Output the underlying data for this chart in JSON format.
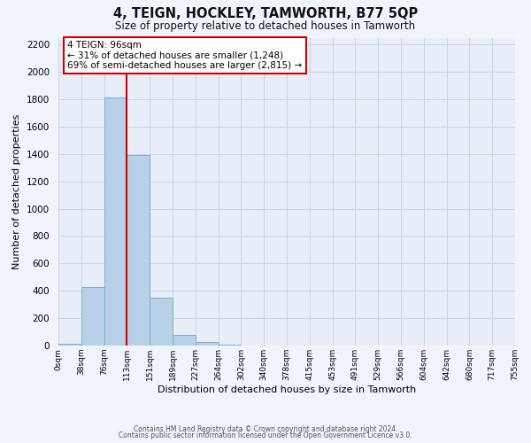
{
  "title": "4, TEIGN, HOCKLEY, TAMWORTH, B77 5QP",
  "subtitle": "Size of property relative to detached houses in Tamworth",
  "xlabel": "Distribution of detached houses by size in Tamworth",
  "ylabel": "Number of detached properties",
  "bar_color": "#b8d0e8",
  "bar_edge_color": "#7aaed0",
  "background_color": "#e8eef8",
  "grid_color": "#c8d4e4",
  "tick_labels": [
    "0sqm",
    "38sqm",
    "76sqm",
    "113sqm",
    "151sqm",
    "189sqm",
    "227sqm",
    "264sqm",
    "302sqm",
    "340sqm",
    "378sqm",
    "415sqm",
    "453sqm",
    "491sqm",
    "529sqm",
    "566sqm",
    "604sqm",
    "642sqm",
    "680sqm",
    "717sqm",
    "755sqm"
  ],
  "bar_heights": [
    15,
    430,
    1810,
    1390,
    350,
    80,
    25,
    5,
    0,
    0,
    0,
    0,
    0,
    0,
    0,
    0,
    0,
    0,
    0,
    0
  ],
  "ylim": [
    0,
    2250
  ],
  "yticks": [
    0,
    200,
    400,
    600,
    800,
    1000,
    1200,
    1400,
    1600,
    1800,
    2000,
    2200
  ],
  "vline_color": "#cc0000",
  "annotation_title": "4 TEIGN: 96sqm",
  "annotation_line1": "← 31% of detached houses are smaller (1,248)",
  "annotation_line2": "69% of semi-detached houses are larger (2,815) →",
  "annotation_box_color": "#ffffff",
  "annotation_box_edge": "#cc0000",
  "footer_line1": "Contains HM Land Registry data © Crown copyright and database right 2024.",
  "footer_line2": "Contains public sector information licensed under the Open Government Licence v3.0.",
  "fig_bg": "#f0f4fc"
}
